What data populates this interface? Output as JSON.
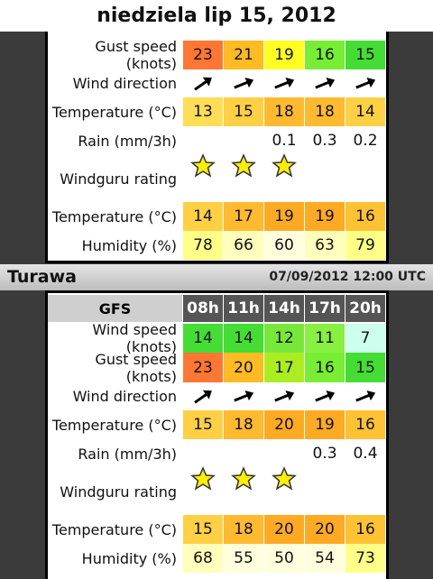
{
  "header": {
    "title": "niedziela lip 15, 2012"
  },
  "panel1": {
    "rows": [
      {
        "label": "Gust speed (knots)",
        "values": [
          23,
          21,
          19,
          16,
          15
        ]
      },
      {
        "label": "Wind direction"
      },
      {
        "label": "Temperature (°C)",
        "values": [
          13,
          15,
          18,
          18,
          14
        ]
      },
      {
        "label": "Rain (mm/3h)",
        "values": [
          null,
          null,
          0.1,
          0.3,
          0.2
        ]
      },
      {
        "label": "Windguru rating"
      },
      {
        "label": "Temperature (°C)",
        "values": [
          14,
          17,
          19,
          19,
          16
        ]
      },
      {
        "label": "Humidity (%)",
        "values": [
          78,
          66,
          60,
          63,
          79
        ]
      }
    ]
  },
  "location": {
    "name": "Turawa",
    "time": "07/09/2012 12:00 UTC"
  },
  "panel2": {
    "model": "GFS",
    "hours": [
      "08h",
      "11h",
      "14h",
      "17h",
      "20h"
    ],
    "rows": [
      {
        "label": "Wind speed (knots)",
        "values": [
          14,
          14,
          12,
          11,
          7
        ]
      },
      {
        "label": "Gust speed (knots)",
        "values": [
          23,
          20,
          17,
          16,
          15
        ]
      },
      {
        "label": "Wind direction"
      },
      {
        "label": "Temperature (°C)",
        "values": [
          15,
          18,
          20,
          19,
          16
        ]
      },
      {
        "label": "Rain (mm/3h)",
        "values": [
          null,
          null,
          null,
          0.3,
          0.4
        ]
      },
      {
        "label": "Windguru rating"
      },
      {
        "label": "Temperature (°C)",
        "values": [
          15,
          18,
          20,
          20,
          16
        ]
      },
      {
        "label": "Humidity (%)",
        "values": [
          68,
          55,
          50,
          54,
          73
        ]
      }
    ]
  }
}
